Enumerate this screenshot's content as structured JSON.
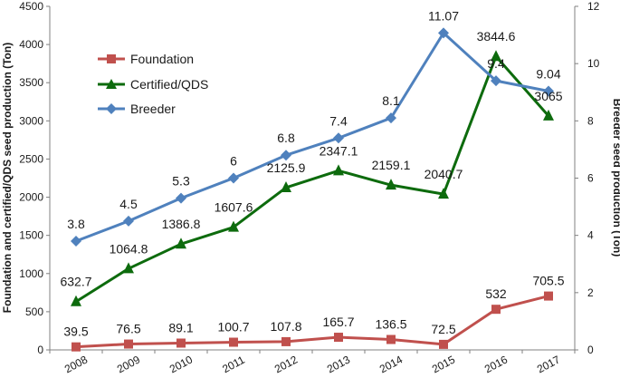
{
  "chart_data": {
    "type": "line",
    "x": [
      "2008",
      "2009",
      "2010",
      "2011",
      "2012",
      "2013",
      "2014",
      "2015",
      "2016",
      "2017"
    ],
    "ylabel_left": "Foundation and certified/QDS seed production (Ton)",
    "ylabel_right": "Breeder seed production (Ton)",
    "ylim_left": [
      0,
      4500
    ],
    "ylim_right": [
      0,
      12
    ],
    "yticks_left": [
      "0",
      "500",
      "1000",
      "1500",
      "2000",
      "2500",
      "3000",
      "3500",
      "4000",
      "4500"
    ],
    "yticks_right": [
      "0",
      "2",
      "4",
      "6",
      "8",
      "10",
      "12"
    ],
    "grid": false,
    "legend_position": "top-left",
    "series": [
      {
        "name": "Foundation",
        "axis": "left",
        "marker": "square",
        "color": "#c0504d",
        "values": [
          39.5,
          76.5,
          89.1,
          100.7,
          107.8,
          165.7,
          136.5,
          72.5,
          532,
          705.5
        ],
        "labels": [
          "39.5",
          "76.5",
          "89.1",
          "100.7",
          "107.8",
          "165.7",
          "136.5",
          "72.5",
          "532",
          "705.5"
        ]
      },
      {
        "name": "Certified/QDS",
        "axis": "left",
        "marker": "triangle",
        "color": "#0d6b0d",
        "values": [
          632.7,
          1064.8,
          1386.8,
          1607.6,
          2125.9,
          2347.1,
          2159.1,
          2040.7,
          3844.6,
          3065
        ],
        "labels": [
          "632.7",
          "1064.8",
          "1386.8",
          "1607.6",
          "2125.9",
          "2347.1",
          "2159.1",
          "2040.7",
          "3844.6",
          "3065"
        ]
      },
      {
        "name": "Breeder",
        "axis": "right",
        "marker": "diamond",
        "color": "#4f81bd",
        "values": [
          3.8,
          4.5,
          5.3,
          6,
          6.8,
          7.4,
          8.1,
          11.07,
          9.4,
          9.04
        ],
        "labels": [
          "3.8",
          "4.5",
          "5.3",
          "6",
          "6.8",
          "7.4",
          "8.1",
          "11.07",
          "9.4",
          "9.04"
        ]
      }
    ]
  }
}
